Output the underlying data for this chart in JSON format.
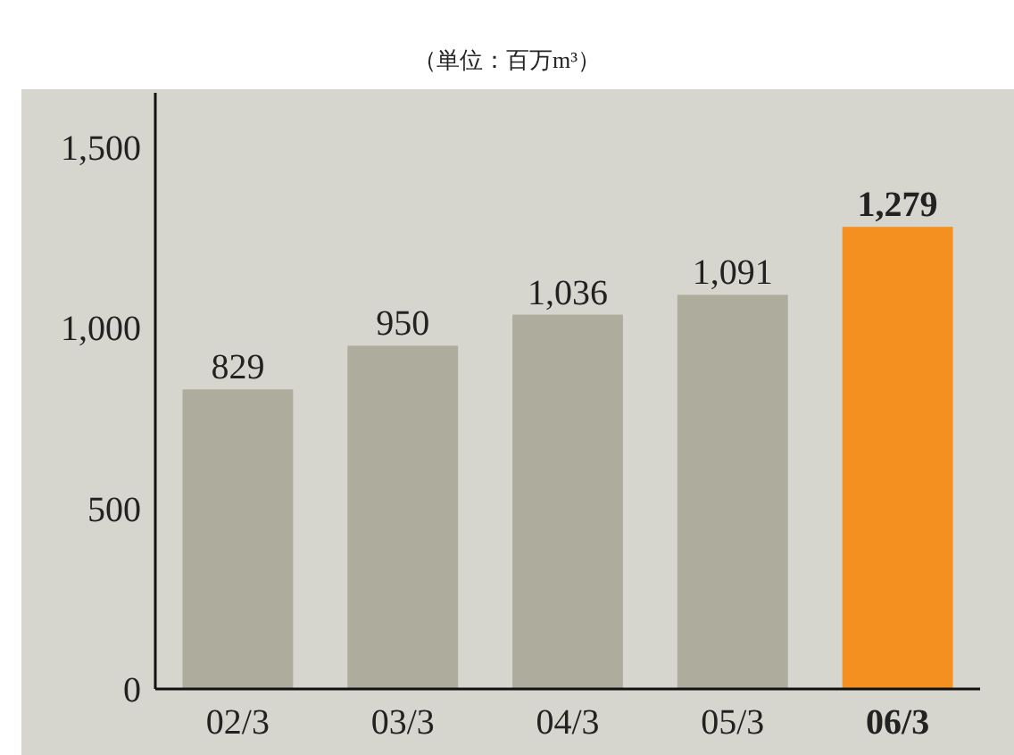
{
  "chart_data": {
    "type": "bar",
    "subtitle": "（単位：百万m³）",
    "categories": [
      "02/3",
      "03/3",
      "04/3",
      "05/3",
      "06/3"
    ],
    "values": [
      829,
      950,
      1036,
      1091,
      1279
    ],
    "colors": [
      "#aeac9c",
      "#aeac9c",
      "#aeac9c",
      "#aeac9c",
      "#f39020"
    ],
    "value_labels": [
      "829",
      "950",
      "1,036",
      "1,091",
      "1,279"
    ],
    "ylim": [
      0,
      1650
    ],
    "yticks": [
      0,
      500,
      {
        "value": 1000,
        "label": "1,000"
      },
      {
        "value": 1500,
        "label": "1,500"
      }
    ],
    "grid": false
  }
}
